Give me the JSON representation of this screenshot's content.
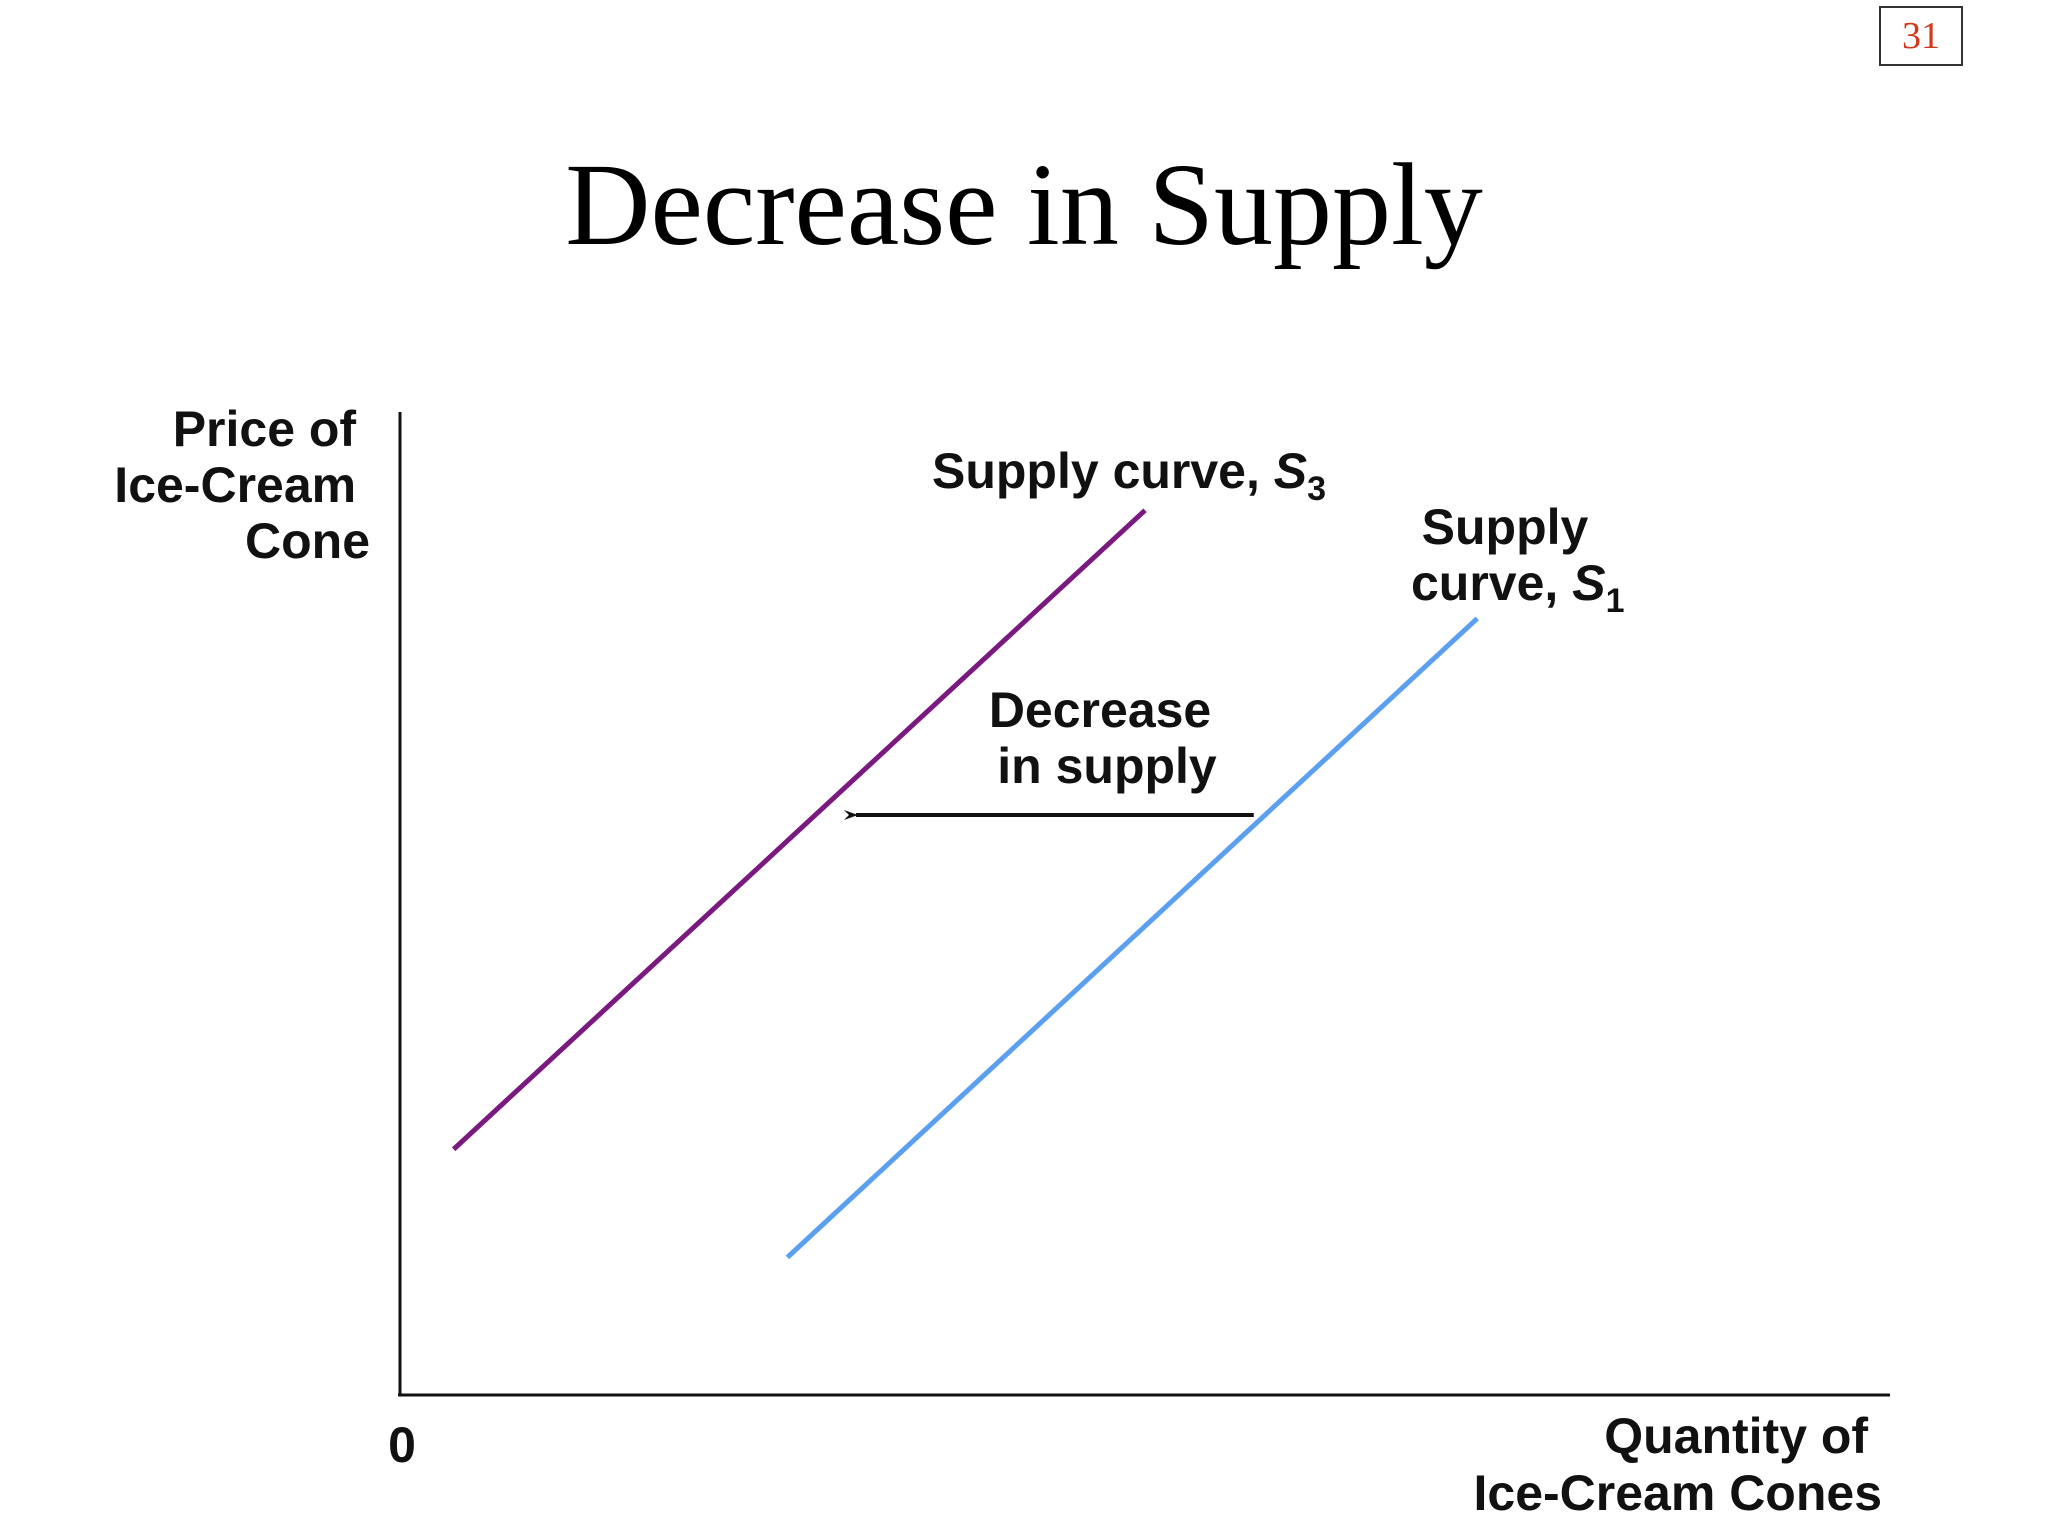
{
  "slide": {
    "page_number": "31",
    "title": "Decrease in Supply"
  },
  "colors": {
    "s3_line": "#7b1a7e",
    "s1_line": "#5b9ff0",
    "axis": "#111111",
    "arrow": "#111111"
  },
  "chart_data": {
    "type": "line",
    "title": "Decrease in Supply",
    "ylabel_lines": [
      "Price of",
      "Ice-Cream",
      "Cone"
    ],
    "xlabel_lines": [
      "Quantity of",
      "Ice-Cream Cones"
    ],
    "origin_label": "0",
    "xlim": [
      0,
      100
    ],
    "ylim": [
      0,
      100
    ],
    "grid": false,
    "series": [
      {
        "name_text": "Supply curve, ",
        "name_symbol": "S",
        "name_subscript": "3",
        "color": "#7b1a7e",
        "points": [
          [
            3.6,
            25
          ],
          [
            50.0,
            90
          ]
        ]
      },
      {
        "name_line1": "Supply",
        "name_line2_text": "curve, ",
        "name_symbol": "S",
        "name_subscript": "1",
        "color": "#5b9ff0",
        "points": [
          [
            26.0,
            14
          ],
          [
            72.3,
            79
          ]
        ]
      }
    ],
    "annotations": [
      {
        "type": "arrow",
        "text_lines": [
          "Decrease",
          "in supply"
        ],
        "from": [
          57.3,
          59
        ],
        "to": [
          30.6,
          59
        ]
      }
    ]
  }
}
